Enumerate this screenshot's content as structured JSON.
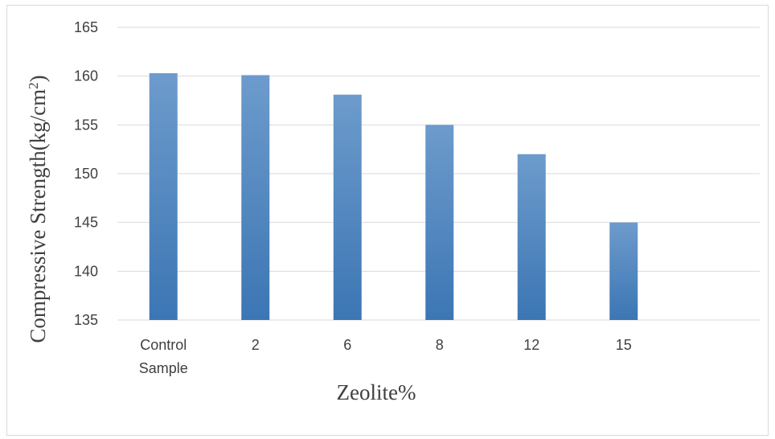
{
  "chart_data": {
    "type": "bar",
    "categories": [
      [
        "Control",
        "Sample"
      ],
      [
        "2"
      ],
      [
        "6"
      ],
      [
        "8"
      ],
      [
        "12"
      ],
      [
        "15"
      ]
    ],
    "values": [
      160.3,
      160.1,
      158.1,
      155.0,
      152.0,
      145.0
    ],
    "xlabel": "Zeolite%",
    "ylabel_main": "Compressive Strength(kg/cm",
    "ylabel_sup": "2",
    "ylabel_close": ")",
    "ylim": [
      135,
      165
    ],
    "yticks": [
      135,
      140,
      145,
      150,
      155,
      160,
      165
    ],
    "grid": true,
    "legend": "none",
    "colors": {
      "bar_top": "#6d9bcc",
      "bar_bottom": "#3c76b4",
      "grid": "#d9d9d9",
      "text": "#404040"
    }
  }
}
